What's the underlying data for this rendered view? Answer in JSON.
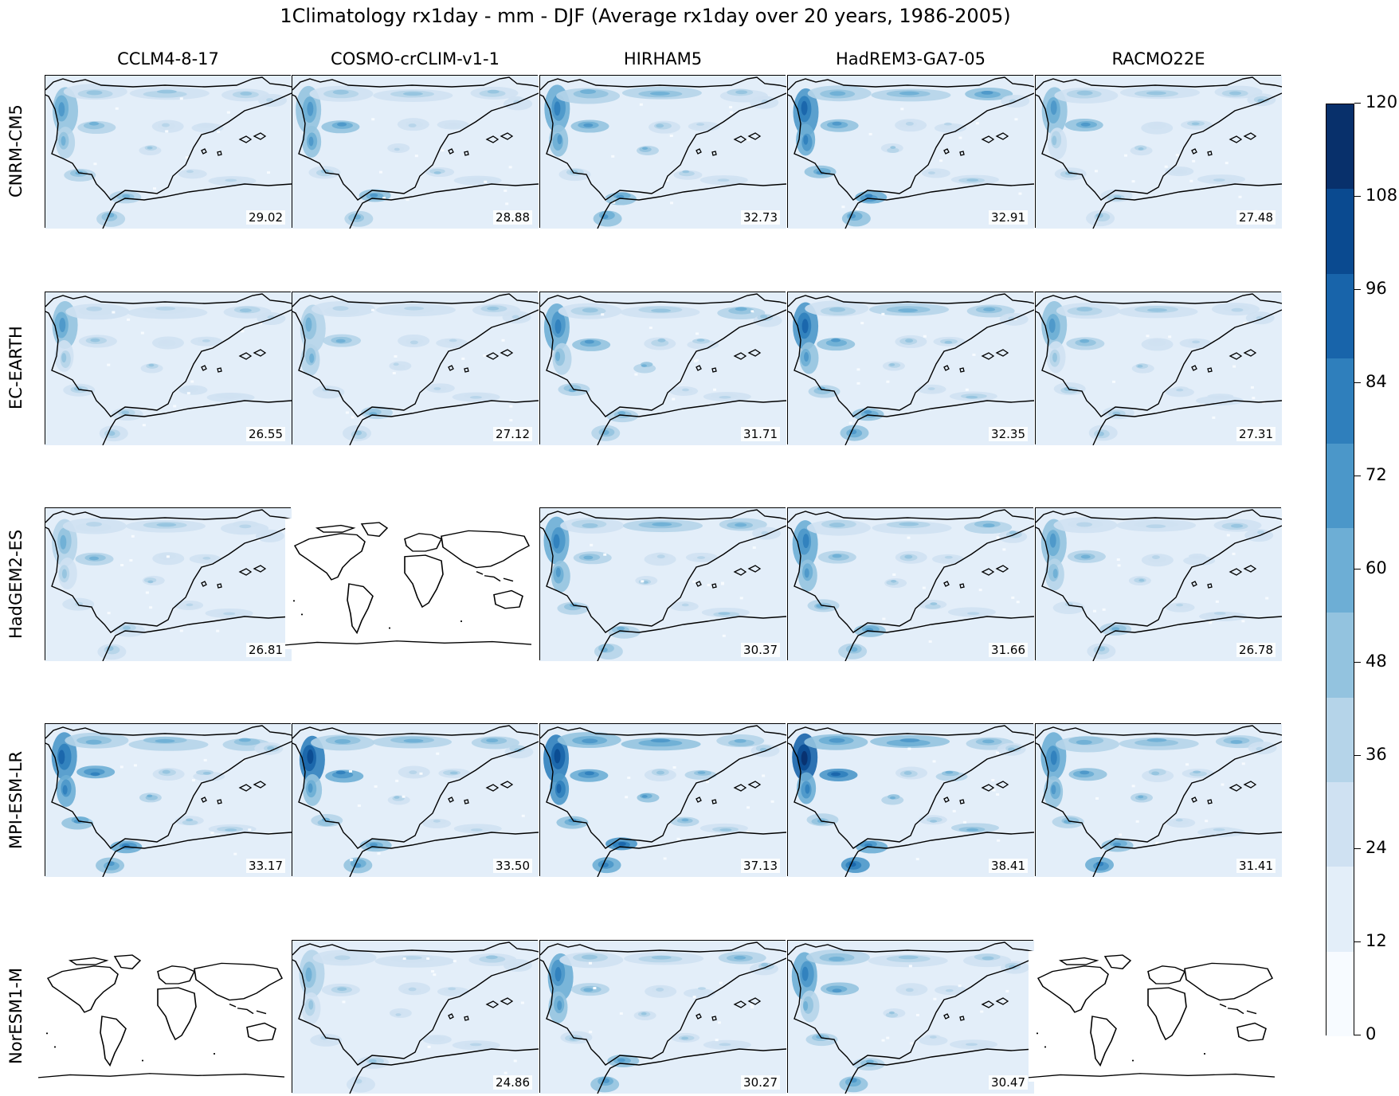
{
  "title": "1Climatology rx1day - mm - DJF (Average rx1day over 20 years, 1986-2005)",
  "columns": [
    "CCLM4-8-17",
    "COSMO-crCLIM-v1-1",
    "HIRHAM5",
    "HadREM3-GA7-05",
    "RACMO22E"
  ],
  "rows": [
    "CNRM-CM5",
    "EC-EARTH",
    "HadGEM2-ES",
    "MPI-ESM-LR",
    "NorESM1-M"
  ],
  "panels": [
    [
      "29.02",
      "28.88",
      "32.73",
      "32.91",
      "27.48"
    ],
    [
      "26.55",
      "27.12",
      "31.71",
      "32.35",
      "27.31"
    ],
    [
      "26.81",
      null,
      "30.37",
      "31.66",
      "26.78"
    ],
    [
      "33.17",
      "33.50",
      "37.13",
      "38.41",
      "31.41"
    ],
    [
      null,
      "24.86",
      "30.27",
      "30.47",
      null
    ]
  ],
  "colorbar": {
    "ticks": [
      "0",
      "12",
      "24",
      "36",
      "48",
      "60",
      "72",
      "84",
      "96",
      "108",
      "120"
    ],
    "colors": [
      "#f7fbff",
      "#e3eef9",
      "#cfe1f2",
      "#b5d4e9",
      "#93c3df",
      "#6daed5",
      "#4b97c9",
      "#2f7fbc",
      "#1864aa",
      "#0a4a90",
      "#08306b"
    ]
  }
}
